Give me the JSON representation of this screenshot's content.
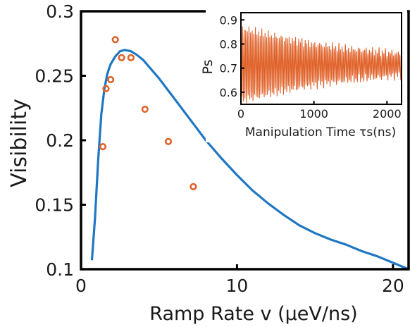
{
  "chart_data": [
    {
      "type": "scatter",
      "role": "main",
      "xlabel": "Ramp Rate v (μeV/ns)",
      "ylabel": "Visibility",
      "xlim": [
        0,
        21
      ],
      "ylim": [
        0.1,
        0.3
      ],
      "xticks": [
        0,
        10,
        20
      ],
      "yticks": [
        0.1,
        0.15,
        0.2,
        0.25,
        0.3
      ],
      "ytick_labels": [
        "0.1",
        "0.15",
        "0.2",
        "0.25",
        "0.3"
      ],
      "grid": false,
      "colors": {
        "fit": "#1f77c4",
        "data": "#e0622a",
        "axis": "#000000"
      },
      "series": [
        {
          "kind": "points",
          "marker": "open-circle",
          "x": [
            1.4,
            1.6,
            1.9,
            2.2,
            2.6,
            3.2,
            4.1,
            5.6,
            7.2
          ],
          "y": [
            0.195,
            0.24,
            0.247,
            0.278,
            0.264,
            0.264,
            0.224,
            0.199,
            0.164
          ]
        },
        {
          "kind": "line",
          "x": [
            0.7,
            0.9,
            1.1,
            1.3,
            1.5,
            1.7,
            1.9,
            2.2,
            2.5,
            2.8,
            3.2,
            3.6,
            4.0,
            4.5,
            5.0,
            6.0,
            7.0,
            8.0,
            9.0,
            10.0,
            11.0,
            12.0,
            13.0,
            14.0,
            15.0,
            16.0,
            17.0,
            18.0,
            19.0,
            20.0,
            21.0
          ],
          "y": [
            0.107,
            0.14,
            0.185,
            0.22,
            0.24,
            0.252,
            0.259,
            0.265,
            0.269,
            0.27,
            0.269,
            0.266,
            0.262,
            0.255,
            0.248,
            0.232,
            0.216,
            0.2,
            0.186,
            0.173,
            0.161,
            0.151,
            0.142,
            0.134,
            0.128,
            0.123,
            0.119,
            0.114,
            0.11,
            0.105,
            0.1
          ]
        }
      ]
    },
    {
      "type": "line",
      "role": "inset",
      "xlabel": "Manipulation Time τs(ns)",
      "ylabel": "Ps",
      "xlim": [
        0,
        2200
      ],
      "ylim": [
        0.55,
        0.93
      ],
      "xticks": [
        0,
        1000,
        2000
      ],
      "yticks": [
        0.6,
        0.7,
        0.8,
        0.9
      ],
      "ytick_labels": [
        "0.6",
        "0.7",
        "0.8",
        "0.9"
      ],
      "colors": {
        "trace": "#e0622a"
      },
      "series": [
        {
          "kind": "oscillation",
          "t_start": 0,
          "t_end": 2200,
          "period": 22,
          "center": 0.715,
          "amplitude_envelope": {
            "t": [
              0,
              500,
              1000,
              1500,
              2200
            ],
            "amplitude": [
              0.15,
              0.115,
              0.085,
              0.065,
              0.045
            ]
          }
        }
      ]
    }
  ]
}
